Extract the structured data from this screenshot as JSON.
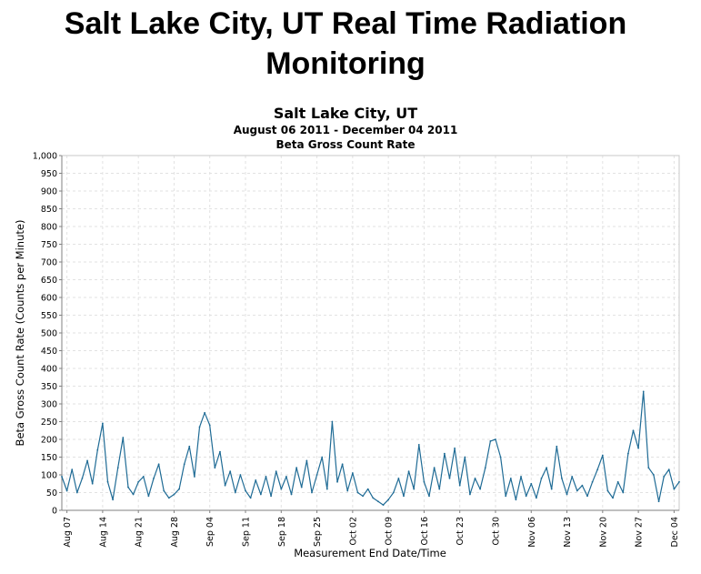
{
  "page": {
    "title": "Salt Lake City, UT Real Time Radiation Monitoring"
  },
  "colors": {
    "series": "#1f6b95",
    "grid": "#e2e2e2",
    "axis": "#808080"
  },
  "chart_data": {
    "type": "line",
    "title": "Salt Lake City, UT",
    "subtitle": "August 06 2011 - December 04 2011",
    "subtitle2": "Beta Gross Count Rate",
    "xlabel": "Measurement End Date/Time",
    "ylabel": "Beta Gross Count Rate (Counts per Minute)",
    "xlim": [
      "2011-08-06",
      "2011-12-05"
    ],
    "ylim": [
      0,
      1000
    ],
    "ytick_step": 50,
    "grid": true,
    "x_tick_labels": [
      "Aug 07",
      "Aug 14",
      "Aug 21",
      "Aug 28",
      "Sep 04",
      "Sep 11",
      "Sep 18",
      "Sep 25",
      "Oct 02",
      "Oct 09",
      "Oct 16",
      "Oct 23",
      "Oct 30",
      "Nov 06",
      "Nov 13",
      "Nov 20",
      "Nov 27",
      "Dec 04"
    ],
    "x_tick_dates": [
      "2011-08-07",
      "2011-08-14",
      "2011-08-21",
      "2011-08-28",
      "2011-09-04",
      "2011-09-11",
      "2011-09-18",
      "2011-09-25",
      "2011-10-02",
      "2011-10-09",
      "2011-10-16",
      "2011-10-23",
      "2011-10-30",
      "2011-11-06",
      "2011-11-13",
      "2011-11-20",
      "2011-11-27",
      "2011-12-04"
    ],
    "series": [
      {
        "name": "Beta Gross Count Rate",
        "points": [
          [
            "2011-08-06",
            95
          ],
          [
            "2011-08-07",
            55
          ],
          [
            "2011-08-08",
            115
          ],
          [
            "2011-08-09",
            50
          ],
          [
            "2011-08-10",
            90
          ],
          [
            "2011-08-11",
            140
          ],
          [
            "2011-08-12",
            75
          ],
          [
            "2011-08-13",
            170
          ],
          [
            "2011-08-14",
            245
          ],
          [
            "2011-08-15",
            80
          ],
          [
            "2011-08-16",
            30
          ],
          [
            "2011-08-17",
            120
          ],
          [
            "2011-08-18",
            205
          ],
          [
            "2011-08-19",
            65
          ],
          [
            "2011-08-20",
            45
          ],
          [
            "2011-08-21",
            80
          ],
          [
            "2011-08-22",
            95
          ],
          [
            "2011-08-23",
            40
          ],
          [
            "2011-08-24",
            90
          ],
          [
            "2011-08-25",
            130
          ],
          [
            "2011-08-26",
            55
          ],
          [
            "2011-08-27",
            35
          ],
          [
            "2011-08-28",
            45
          ],
          [
            "2011-08-29",
            60
          ],
          [
            "2011-08-30",
            130
          ],
          [
            "2011-08-31",
            180
          ],
          [
            "2011-09-01",
            95
          ],
          [
            "2011-09-02",
            235
          ],
          [
            "2011-09-03",
            275
          ],
          [
            "2011-09-04",
            240
          ],
          [
            "2011-09-05",
            120
          ],
          [
            "2011-09-06",
            165
          ],
          [
            "2011-09-07",
            70
          ],
          [
            "2011-09-08",
            110
          ],
          [
            "2011-09-09",
            50
          ],
          [
            "2011-09-10",
            100
          ],
          [
            "2011-09-11",
            55
          ],
          [
            "2011-09-12",
            35
          ],
          [
            "2011-09-13",
            85
          ],
          [
            "2011-09-14",
            45
          ],
          [
            "2011-09-15",
            95
          ],
          [
            "2011-09-16",
            40
          ],
          [
            "2011-09-17",
            110
          ],
          [
            "2011-09-18",
            60
          ],
          [
            "2011-09-19",
            95
          ],
          [
            "2011-09-20",
            45
          ],
          [
            "2011-09-21",
            120
          ],
          [
            "2011-09-22",
            65
          ],
          [
            "2011-09-23",
            140
          ],
          [
            "2011-09-24",
            50
          ],
          [
            "2011-09-25",
            100
          ],
          [
            "2011-09-26",
            150
          ],
          [
            "2011-09-27",
            60
          ],
          [
            "2011-09-28",
            250
          ],
          [
            "2011-09-29",
            80
          ],
          [
            "2011-09-30",
            130
          ],
          [
            "2011-10-01",
            55
          ],
          [
            "2011-10-02",
            105
          ],
          [
            "2011-10-03",
            50
          ],
          [
            "2011-10-04",
            40
          ],
          [
            "2011-10-05",
            60
          ],
          [
            "2011-10-06",
            35
          ],
          [
            "2011-10-07",
            25
          ],
          [
            "2011-10-08",
            15
          ],
          [
            "2011-10-09",
            30
          ],
          [
            "2011-10-10",
            50
          ],
          [
            "2011-10-11",
            90
          ],
          [
            "2011-10-12",
            40
          ],
          [
            "2011-10-13",
            110
          ],
          [
            "2011-10-14",
            60
          ],
          [
            "2011-10-15",
            185
          ],
          [
            "2011-10-16",
            80
          ],
          [
            "2011-10-17",
            40
          ],
          [
            "2011-10-18",
            120
          ],
          [
            "2011-10-19",
            60
          ],
          [
            "2011-10-20",
            160
          ],
          [
            "2011-10-21",
            90
          ],
          [
            "2011-10-22",
            175
          ],
          [
            "2011-10-23",
            70
          ],
          [
            "2011-10-24",
            150
          ],
          [
            "2011-10-25",
            45
          ],
          [
            "2011-10-26",
            90
          ],
          [
            "2011-10-27",
            60
          ],
          [
            "2011-10-28",
            120
          ],
          [
            "2011-10-29",
            195
          ],
          [
            "2011-10-30",
            200
          ],
          [
            "2011-10-31",
            150
          ],
          [
            "2011-11-01",
            40
          ],
          [
            "2011-11-02",
            90
          ],
          [
            "2011-11-03",
            30
          ],
          [
            "2011-11-04",
            95
          ],
          [
            "2011-11-05",
            40
          ],
          [
            "2011-11-06",
            75
          ],
          [
            "2011-11-07",
            35
          ],
          [
            "2011-11-08",
            90
          ],
          [
            "2011-11-09",
            120
          ],
          [
            "2011-11-10",
            60
          ],
          [
            "2011-11-11",
            180
          ],
          [
            "2011-11-12",
            90
          ],
          [
            "2011-11-13",
            45
          ],
          [
            "2011-11-14",
            95
          ],
          [
            "2011-11-15",
            55
          ],
          [
            "2011-11-16",
            70
          ],
          [
            "2011-11-17",
            40
          ],
          [
            "2011-11-18",
            80
          ],
          [
            "2011-11-19",
            115
          ],
          [
            "2011-11-20",
            155
          ],
          [
            "2011-11-21",
            55
          ],
          [
            "2011-11-22",
            35
          ],
          [
            "2011-11-23",
            80
          ],
          [
            "2011-11-24",
            50
          ],
          [
            "2011-11-25",
            160
          ],
          [
            "2011-11-26",
            225
          ],
          [
            "2011-11-27",
            175
          ],
          [
            "2011-11-28",
            335
          ],
          [
            "2011-11-29",
            120
          ],
          [
            "2011-11-30",
            100
          ],
          [
            "2011-12-01",
            25
          ],
          [
            "2011-12-02",
            95
          ],
          [
            "2011-12-03",
            115
          ],
          [
            "2011-12-04",
            60
          ],
          [
            "2011-12-05",
            80
          ]
        ]
      }
    ]
  }
}
